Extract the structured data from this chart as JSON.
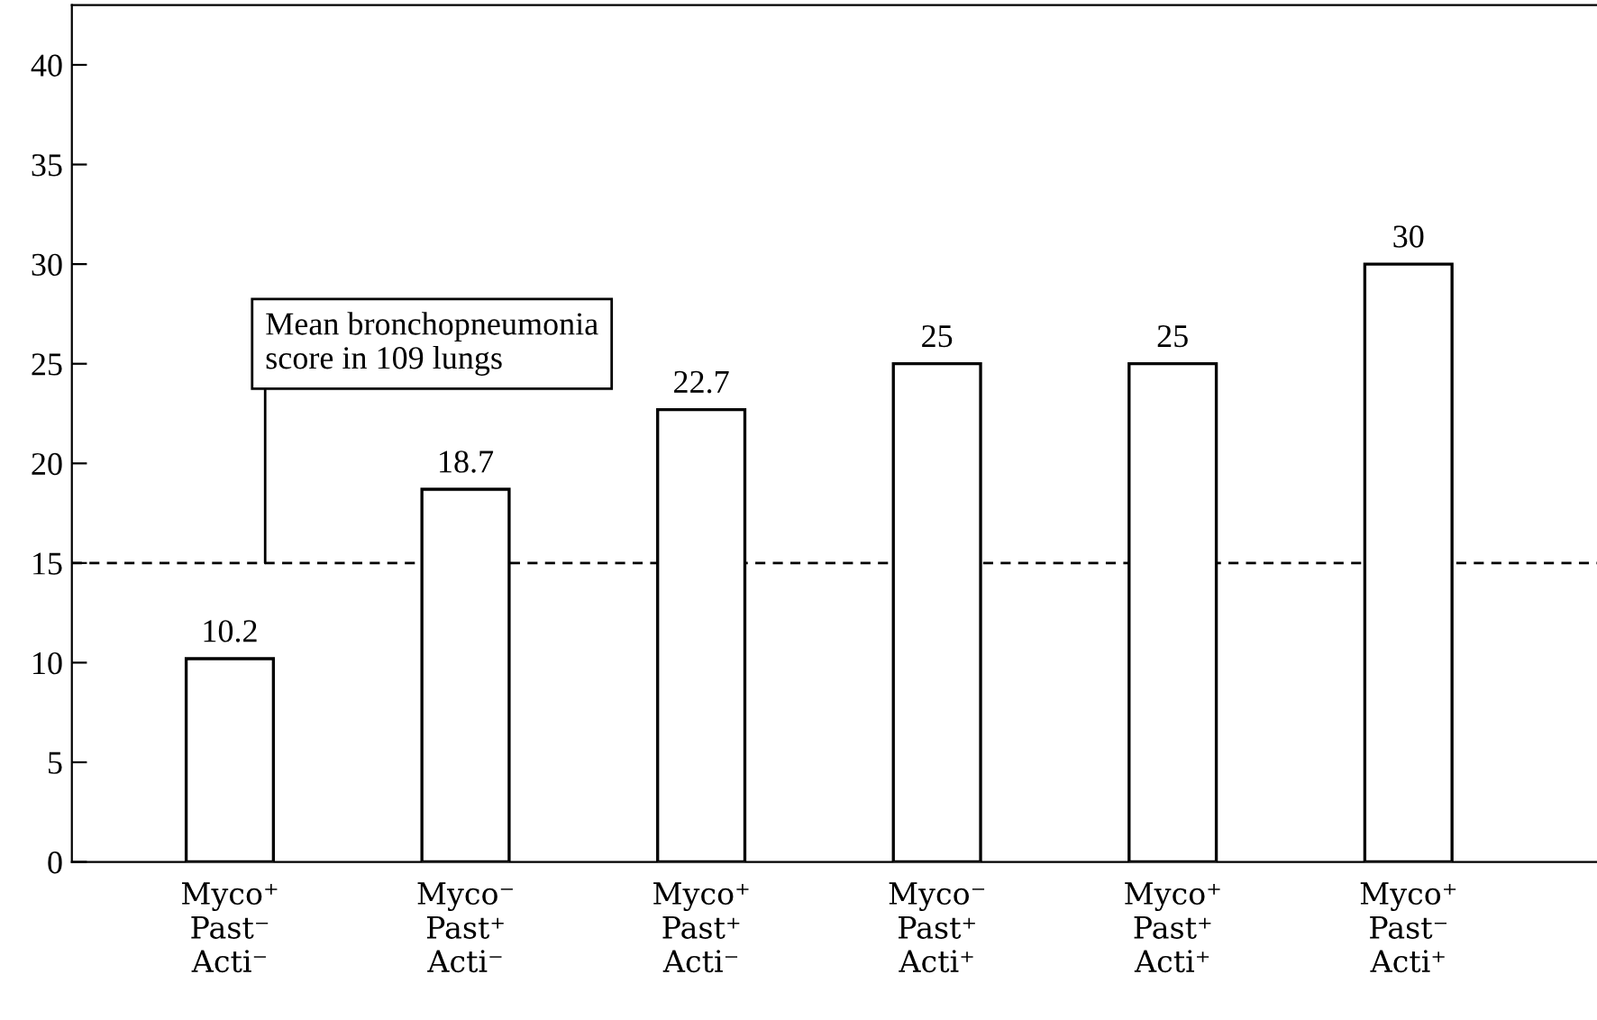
{
  "chart_data": {
    "type": "bar",
    "categories": [
      "Myco⁺\nPast⁻\nActi⁻",
      "Myco⁻\nPast⁺\nActi⁻",
      "Myco⁺\nPast⁺\nActi⁻",
      "Myco⁻\nPast⁺\nActi⁺",
      "Myco⁺\nPast⁺\nActi⁺",
      "Myco⁺\nPast⁻\nActi⁺"
    ],
    "values": [
      10.2,
      18.7,
      22.7,
      25,
      25,
      30
    ],
    "color": "#ffffff",
    "data_labels": true,
    "ylim": [
      0,
      43
    ],
    "yticks": [
      0,
      5,
      10,
      15,
      20,
      25,
      30,
      35,
      40
    ],
    "ref_lines": [
      {
        "axis": "y",
        "value": 15,
        "label": "Mean bronchopneumonia\nscore in 109 lungs",
        "line_style": "dashed",
        "color": "#000000"
      }
    ],
    "grid": false,
    "legend": false
  }
}
